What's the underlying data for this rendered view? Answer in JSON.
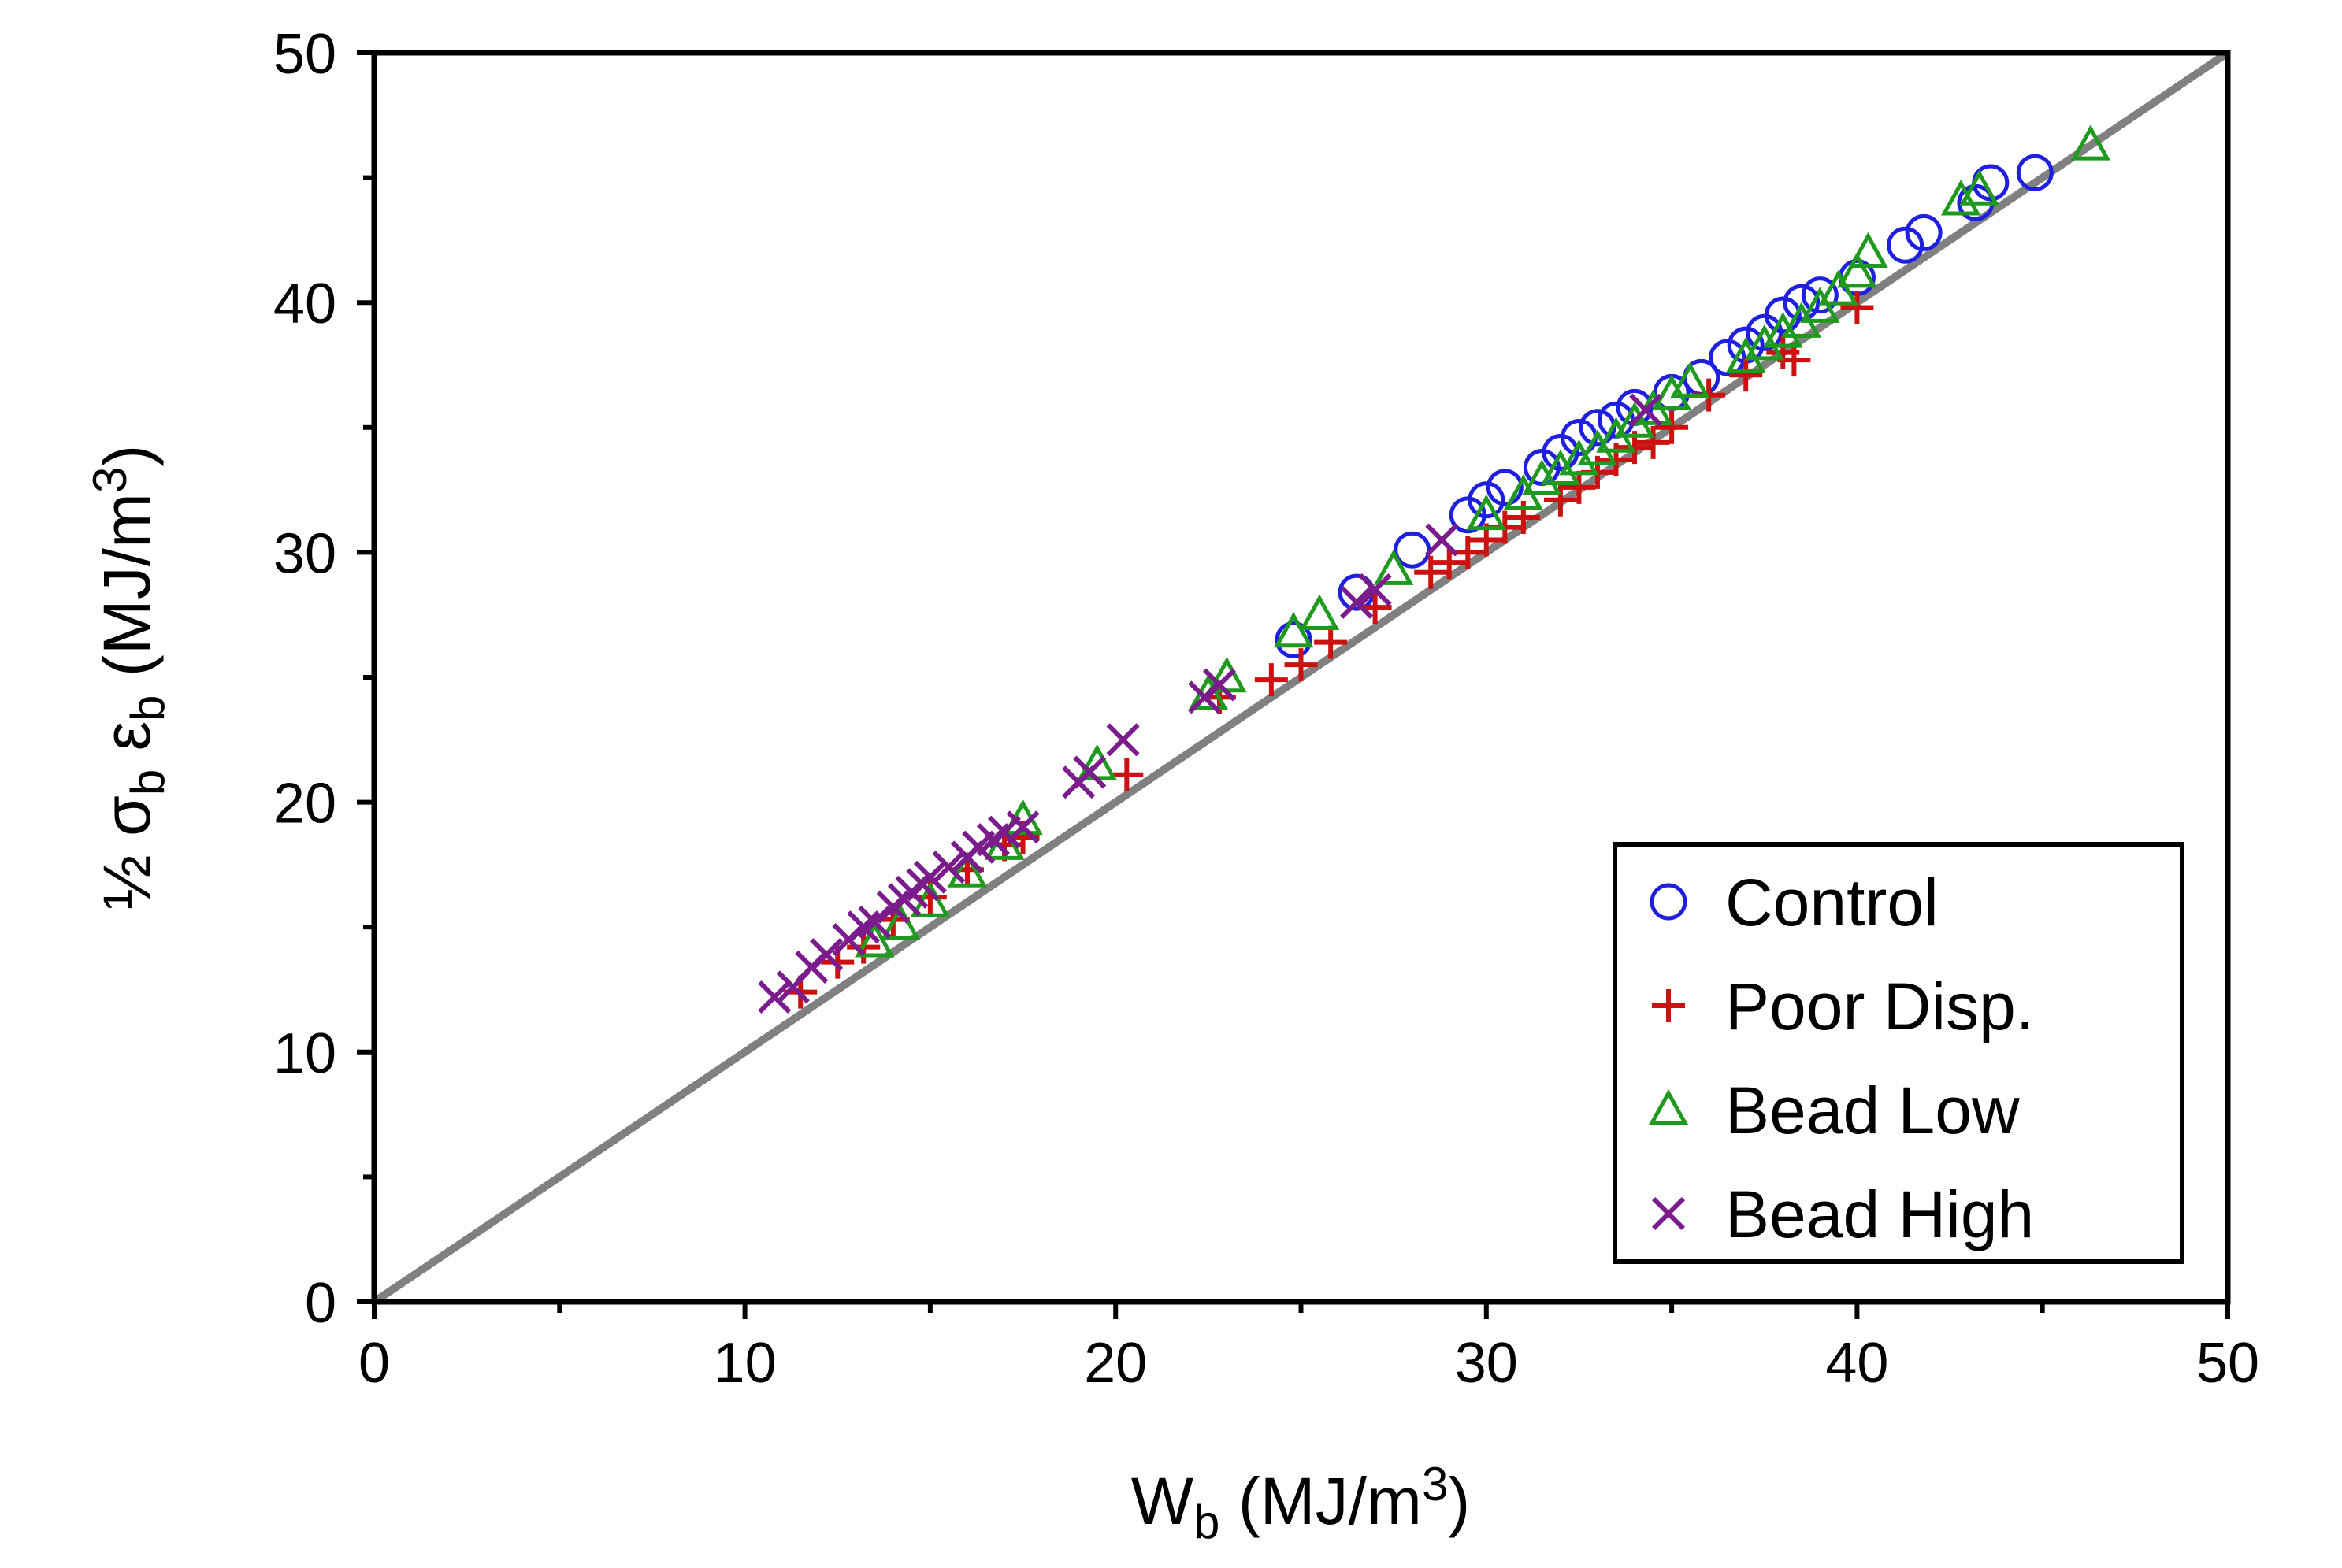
{
  "chart_data": {
    "type": "scatter",
    "title": "",
    "xlabel": {
      "main": "W",
      "sub": "b",
      "unit": " (MJ/m",
      "sup": "3",
      "close": ")"
    },
    "ylabel": {
      "half": "½ ",
      "sigma": "σ",
      "sigma_sub": "b",
      "eps": " ε",
      "eps_sub": "b",
      "unit": " (MJ/m",
      "sup": "3",
      "close": ")"
    },
    "xlim": [
      0,
      50
    ],
    "ylim": [
      0,
      50
    ],
    "xticks": [
      0,
      10,
      20,
      30,
      40,
      50
    ],
    "yticks": [
      0,
      10,
      20,
      30,
      40,
      50
    ],
    "xticks_minor": [
      5,
      15,
      25,
      35,
      45
    ],
    "yticks_minor": [
      5,
      15,
      25,
      35,
      45
    ],
    "reference_line": {
      "from": [
        0,
        0
      ],
      "to": [
        50,
        50
      ],
      "color": "#808080"
    },
    "legend_position": "bottom-right",
    "series": [
      {
        "name": "Control",
        "marker": "circle",
        "color": "#1f1fe0",
        "points": [
          [
            24.8,
            26.5
          ],
          [
            26.5,
            28.4
          ],
          [
            28.0,
            30.1
          ],
          [
            29.5,
            31.5
          ],
          [
            30.0,
            32.1
          ],
          [
            30.5,
            32.6
          ],
          [
            31.5,
            33.4
          ],
          [
            32.0,
            34.0
          ],
          [
            32.5,
            34.6
          ],
          [
            33.0,
            35.0
          ],
          [
            33.5,
            35.3
          ],
          [
            34.0,
            35.8
          ],
          [
            35.0,
            36.4
          ],
          [
            35.8,
            37.0
          ],
          [
            36.5,
            37.8
          ],
          [
            37.0,
            38.3
          ],
          [
            37.5,
            38.8
          ],
          [
            38.0,
            39.5
          ],
          [
            38.5,
            40.0
          ],
          [
            39.0,
            40.3
          ],
          [
            40.0,
            41.0
          ],
          [
            41.3,
            42.3
          ],
          [
            41.8,
            42.8
          ],
          [
            43.2,
            44.0
          ],
          [
            43.6,
            44.8
          ],
          [
            44.8,
            45.2
          ]
        ]
      },
      {
        "name": "Poor Disp.",
        "marker": "plus",
        "color": "#cc1111",
        "points": [
          [
            11.5,
            12.4
          ],
          [
            12.5,
            13.6
          ],
          [
            13.2,
            14.2
          ],
          [
            14.0,
            15.3
          ],
          [
            15.0,
            16.2
          ],
          [
            16.0,
            17.3
          ],
          [
            17.0,
            18.3
          ],
          [
            17.5,
            18.6
          ],
          [
            20.3,
            21.1
          ],
          [
            22.8,
            24.2
          ],
          [
            24.2,
            24.9
          ],
          [
            25.0,
            25.5
          ],
          [
            25.8,
            26.4
          ],
          [
            27.0,
            27.8
          ],
          [
            28.5,
            29.2
          ],
          [
            29.0,
            29.6
          ],
          [
            29.5,
            30.0
          ],
          [
            30.0,
            30.5
          ],
          [
            30.5,
            31.0
          ],
          [
            31.0,
            31.4
          ],
          [
            32.0,
            32.1
          ],
          [
            32.5,
            32.6
          ],
          [
            33.0,
            33.2
          ],
          [
            33.5,
            33.7
          ],
          [
            34.0,
            34.2
          ],
          [
            34.5,
            34.4
          ],
          [
            35.0,
            35.0
          ],
          [
            36.0,
            36.3
          ],
          [
            37.0,
            37.1
          ],
          [
            38.0,
            38.0
          ],
          [
            38.3,
            37.7
          ],
          [
            40.0,
            39.8
          ]
        ]
      },
      {
        "name": "Bead Low",
        "marker": "triangle",
        "color": "#1f9a1f",
        "points": [
          [
            13.5,
            14.4
          ],
          [
            14.2,
            15.1
          ],
          [
            15.0,
            16.0
          ],
          [
            16.0,
            17.2
          ],
          [
            17.0,
            18.3
          ],
          [
            17.5,
            19.3
          ],
          [
            19.5,
            21.5
          ],
          [
            22.5,
            24.3
          ],
          [
            23.0,
            25.0
          ],
          [
            24.8,
            26.8
          ],
          [
            25.5,
            27.5
          ],
          [
            27.5,
            29.3
          ],
          [
            30.0,
            31.5
          ],
          [
            31.0,
            32.3
          ],
          [
            31.5,
            32.9
          ],
          [
            32.0,
            33.3
          ],
          [
            32.5,
            33.7
          ],
          [
            33.0,
            34.1
          ],
          [
            33.5,
            34.6
          ],
          [
            34.0,
            35.2
          ],
          [
            34.5,
            35.7
          ],
          [
            35.0,
            36.3
          ],
          [
            35.5,
            36.8
          ],
          [
            37.0,
            37.8
          ],
          [
            37.5,
            38.3
          ],
          [
            38.0,
            38.8
          ],
          [
            38.5,
            39.2
          ],
          [
            39.0,
            39.8
          ],
          [
            39.5,
            40.5
          ],
          [
            40.0,
            41.2
          ],
          [
            40.3,
            42.0
          ],
          [
            42.8,
            44.1
          ],
          [
            43.3,
            44.5
          ],
          [
            46.3,
            46.3
          ]
        ]
      },
      {
        "name": "Bead High",
        "marker": "x",
        "color": "#7a1c8c",
        "points": [
          [
            10.8,
            12.2
          ],
          [
            11.3,
            12.6
          ],
          [
            11.8,
            13.4
          ],
          [
            12.2,
            13.9
          ],
          [
            12.8,
            14.5
          ],
          [
            13.2,
            15.0
          ],
          [
            13.5,
            15.2
          ],
          [
            14.0,
            15.8
          ],
          [
            14.3,
            16.1
          ],
          [
            14.5,
            16.4
          ],
          [
            14.8,
            16.7
          ],
          [
            15.0,
            17.0
          ],
          [
            15.5,
            17.4
          ],
          [
            16.0,
            17.8
          ],
          [
            16.3,
            18.2
          ],
          [
            16.7,
            18.5
          ],
          [
            17.0,
            18.8
          ],
          [
            17.5,
            19.0
          ],
          [
            19.0,
            20.8
          ],
          [
            19.3,
            21.2
          ],
          [
            20.2,
            22.5
          ],
          [
            22.4,
            24.2
          ],
          [
            22.8,
            24.7
          ],
          [
            26.5,
            28.0
          ],
          [
            27.0,
            28.5
          ],
          [
            28.8,
            30.5
          ],
          [
            34.3,
            35.7
          ]
        ]
      }
    ]
  }
}
